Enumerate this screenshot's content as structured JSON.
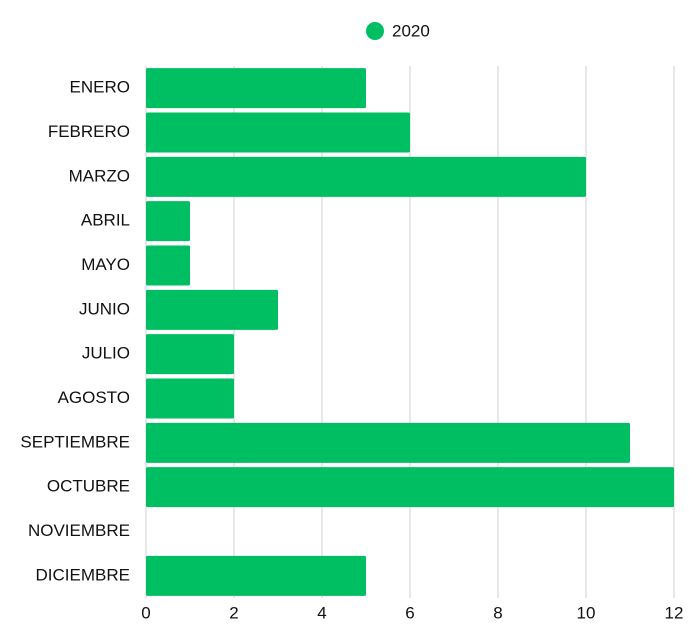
{
  "chart_data": {
    "type": "bar",
    "orientation": "horizontal",
    "categories": [
      "ENERO",
      "FEBRERO",
      "MARZO",
      "ABRIL",
      "MAYO",
      "JUNIO",
      "JULIO",
      "AGOSTO",
      "SEPTIEMBRE",
      "OCTUBRE",
      "NOVIEMBRE",
      "DICIEMBRE"
    ],
    "series": [
      {
        "name": "2020",
        "color": "#00bf63",
        "values": [
          5,
          6,
          10,
          1,
          1,
          3,
          2,
          2,
          11,
          12,
          0,
          5
        ]
      }
    ],
    "xlim": [
      0,
      12
    ],
    "xticks": [
      0,
      2,
      4,
      6,
      8,
      10,
      12
    ],
    "grid": true,
    "legend": "top"
  }
}
